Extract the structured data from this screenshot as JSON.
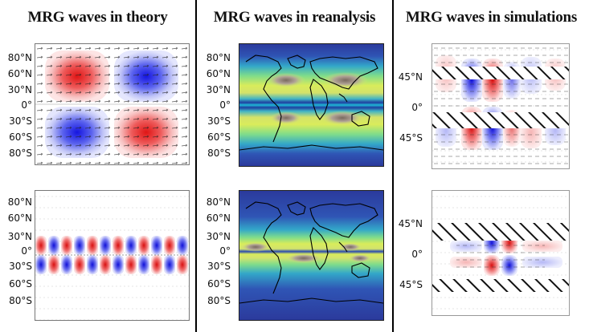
{
  "columns": [
    {
      "title": "MRG waves in theory"
    },
    {
      "title": "MRG waves in reanalysis"
    },
    {
      "title": "MRG waves in simulations"
    }
  ],
  "lat_labels_global": [
    "80°N",
    "60°N",
    "30°N",
    "0°",
    "30°S",
    "60°S",
    "80°S"
  ],
  "lat_labels_sim": [
    "45°N",
    "0°",
    "45°S"
  ],
  "colors": {
    "positive": "#e02020",
    "negative": "#1f2fe0",
    "ocean_bg": "#2d3a9a",
    "hatch": "#111111",
    "frame": "#000000"
  },
  "icons": {
    "coastline": "world-coastline-outline",
    "vector_field": "wind-arrows"
  }
}
